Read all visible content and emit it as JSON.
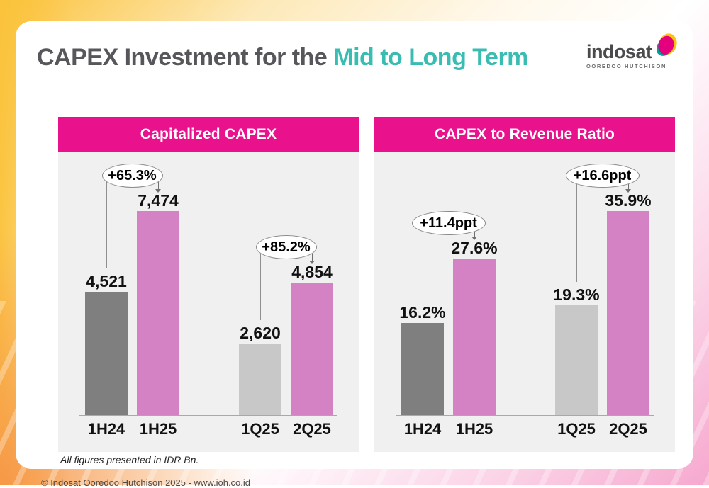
{
  "slide": {
    "title_prefix": "CAPEX Investment for the ",
    "title_highlight": "Mid to Long Term",
    "note": "All figures presented in IDR Bn.",
    "footer": "© Indosat Ooredoo Hutchison 2025 - www.ioh.co.id"
  },
  "logo": {
    "word": "indosat",
    "subtitle": "OOREDOO HUTCHISON"
  },
  "colors": {
    "banner_magenta": "#E9128C",
    "bar_dark_gray": "#7F7F7F",
    "bar_pink": "#D482C4",
    "bar_light_gray": "#C8C8C8",
    "title_teal": "#39BCB1",
    "title_gray": "#56575B",
    "panel_gray": "#F0F0F0"
  },
  "chart_data": [
    {
      "type": "bar",
      "title": "Capitalized CAPEX",
      "unit": "IDR Bn",
      "categories": [
        "1H24",
        "1H25",
        "1Q25",
        "2Q25"
      ],
      "values": [
        4521,
        7474,
        2620,
        4854
      ],
      "value_labels": [
        "4,521",
        "7,474",
        "2,620",
        "4,854"
      ],
      "bar_colors": [
        "#7F7F7F",
        "#D482C4",
        "#C8C8C8",
        "#D482C4"
      ],
      "ylim": [
        0,
        7474
      ],
      "grid": false,
      "axis_labels_shown": false,
      "annotations": [
        {
          "label": "+65.3%",
          "from": 0,
          "to": 1
        },
        {
          "label": "+85.2%",
          "from": 2,
          "to": 3
        }
      ]
    },
    {
      "type": "bar",
      "title": "CAPEX to Revenue Ratio",
      "unit": "%",
      "categories": [
        "1H24",
        "1H25",
        "1Q25",
        "2Q25"
      ],
      "values": [
        16.2,
        27.6,
        19.3,
        35.9
      ],
      "value_labels": [
        "16.2%",
        "27.6%",
        "19.3%",
        "35.9%"
      ],
      "bar_colors": [
        "#7F7F7F",
        "#D482C4",
        "#C8C8C8",
        "#D482C4"
      ],
      "ylim": [
        0,
        35.9
      ],
      "grid": false,
      "axis_labels_shown": false,
      "annotations": [
        {
          "label": "+11.4ppt",
          "from": 0,
          "to": 1
        },
        {
          "label": "+16.6ppt",
          "from": 2,
          "to": 3
        }
      ]
    }
  ]
}
